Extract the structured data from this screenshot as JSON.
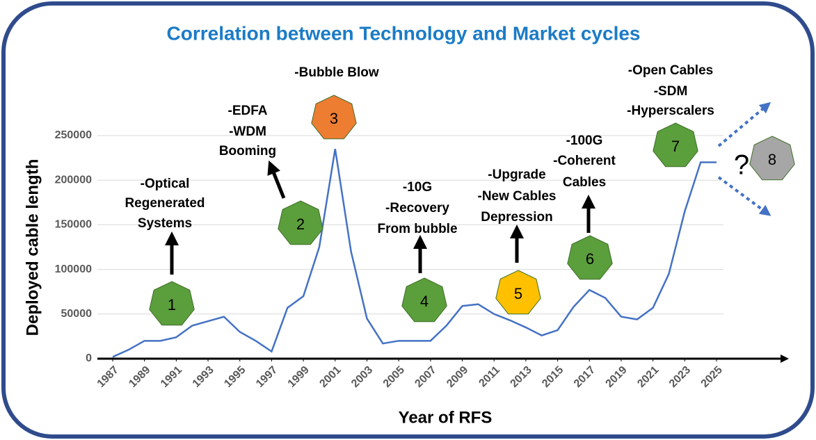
{
  "chart_data": {
    "type": "line",
    "title": "Correlation between Technology and Market cycles",
    "x_label": "Year  of  RFS",
    "y_label": "Deployed  cable  length",
    "x": [
      1987,
      1988,
      1989,
      1990,
      1991,
      1992,
      1993,
      1994,
      1995,
      1996,
      1997,
      1998,
      1999,
      2000,
      2001,
      2002,
      2003,
      2004,
      2005,
      2006,
      2007,
      2008,
      2009,
      2010,
      2011,
      2012,
      2013,
      2014,
      2015,
      2016,
      2017,
      2018,
      2019,
      2020,
      2021,
      2022,
      2023,
      2024,
      2025
    ],
    "values": [
      2000,
      10000,
      20000,
      20000,
      24000,
      37000,
      42000,
      47000,
      30000,
      20000,
      8000,
      57000,
      70000,
      125000,
      235000,
      120000,
      45000,
      17000,
      20000,
      20000,
      20000,
      37000,
      59000,
      61000,
      50000,
      43000,
      35000,
      26000,
      32000,
      58000,
      77000,
      68000,
      47000,
      44000,
      57000,
      95000,
      165000,
      220000,
      220000
    ],
    "color": "#4472c4",
    "xlim": [
      1987,
      2025
    ],
    "xticks": [
      1987,
      1989,
      1991,
      1993,
      1995,
      1997,
      1999,
      2001,
      2003,
      2005,
      2007,
      2009,
      2011,
      2013,
      2015,
      2017,
      2019,
      2021,
      2023,
      2025
    ],
    "ylim": [
      0,
      250000
    ],
    "yticks": [
      0,
      50000,
      100000,
      150000,
      200000,
      250000
    ],
    "grid": true,
    "annotations": [
      {
        "label": "1",
        "color": "#5b9e3c",
        "lines": [
          "-Optical",
          "Regenerated",
          "Systems"
        ]
      },
      {
        "label": "2",
        "color": "#5b9e3c",
        "lines": [
          "-EDFA",
          "-WDM",
          "Booming"
        ]
      },
      {
        "label": "3",
        "color": "#ed7d31",
        "lines": [
          "-Bubble Blow"
        ]
      },
      {
        "label": "4",
        "color": "#5b9e3c",
        "lines": [
          "-10G",
          "-Recovery",
          "From bubble"
        ]
      },
      {
        "label": "5",
        "color": "#ffc000",
        "lines": [
          "-Upgrade",
          "-New Cables",
          "Depression"
        ]
      },
      {
        "label": "6",
        "color": "#5b9e3c",
        "lines": [
          "-100G",
          "-Coherent",
          "Cables"
        ]
      },
      {
        "label": "7",
        "color": "#5b9e3c",
        "lines": [
          "-Open Cables",
          "-SDM",
          "-Hyperscalers"
        ]
      },
      {
        "label": "8",
        "color": "#a6a6a6",
        "lines": []
      }
    ],
    "question": "?"
  }
}
